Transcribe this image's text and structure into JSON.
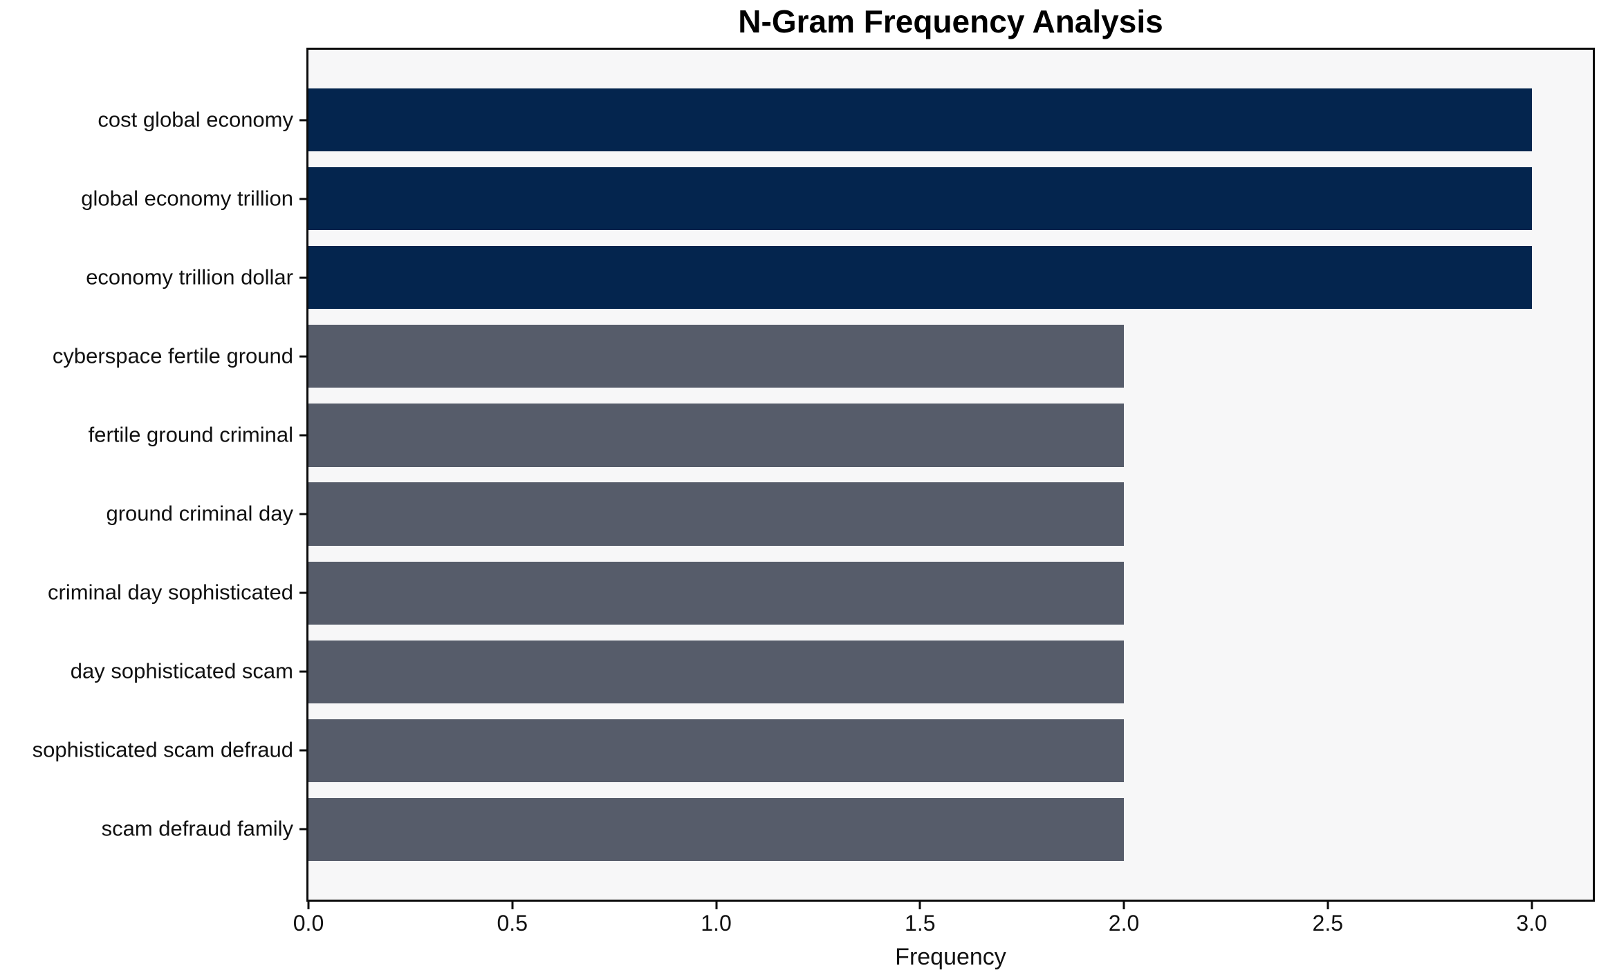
{
  "chart_data": {
    "type": "bar",
    "orientation": "horizontal",
    "title": "N-Gram Frequency Analysis",
    "xlabel": "Frequency",
    "ylabel": "",
    "categories": [
      "cost global economy",
      "global economy trillion",
      "economy trillion dollar",
      "cyberspace fertile ground",
      "fertile ground criminal",
      "ground criminal day",
      "criminal day sophisticated",
      "day sophisticated scam",
      "sophisticated scam defraud",
      "scam defraud family"
    ],
    "values": [
      3,
      3,
      3,
      2,
      2,
      2,
      2,
      2,
      2,
      2
    ],
    "bar_colors": [
      "#04254e",
      "#04254e",
      "#04254e",
      "#565c6a",
      "#565c6a",
      "#565c6a",
      "#565c6a",
      "#565c6a",
      "#565c6a",
      "#565c6a"
    ],
    "xlim": [
      0,
      3.15
    ],
    "xticks": [
      "0.0",
      "0.5",
      "1.0",
      "1.5",
      "2.0",
      "2.5",
      "3.0"
    ],
    "grid": false,
    "legend_position": "none",
    "plot_background": "#f7f7f8",
    "figure_background": "#ffffff",
    "spine_color": "#0b0b0b"
  }
}
